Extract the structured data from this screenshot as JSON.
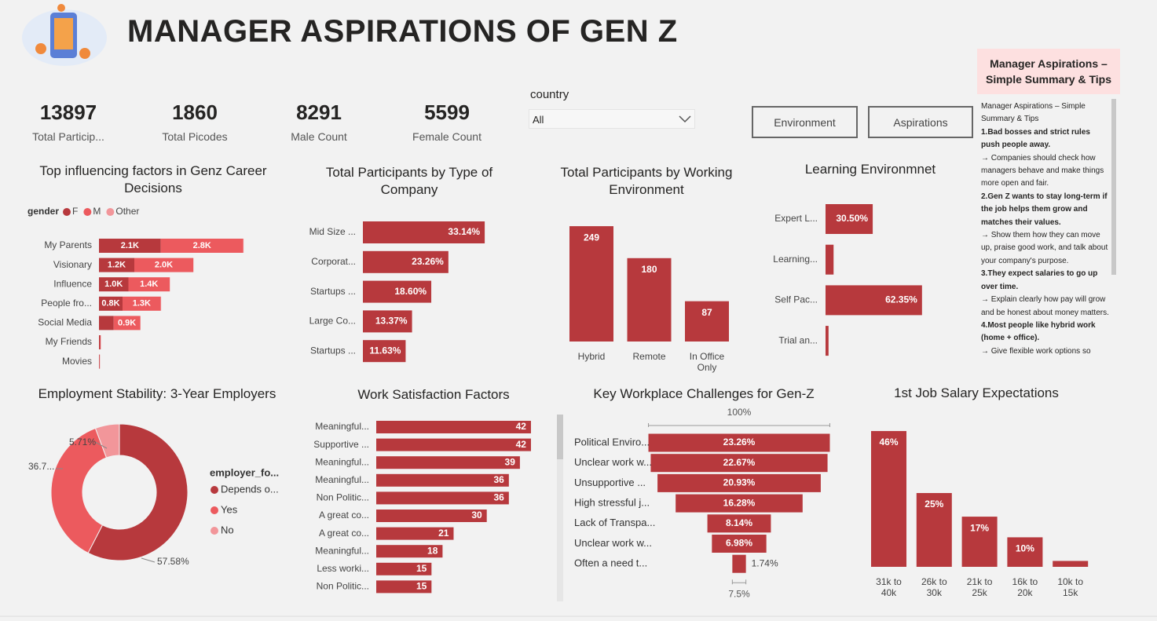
{
  "header": {
    "title": "MANAGER ASPIRATIONS OF GEN Z"
  },
  "kpis": [
    {
      "value": 13897,
      "label": "Total Particip..."
    },
    {
      "value": 1860,
      "label": "Total Picodes"
    },
    {
      "value": 8291,
      "label": "Male Count"
    },
    {
      "value": 5599,
      "label": "Female Count"
    }
  ],
  "slicer": {
    "label": "country",
    "value": "All"
  },
  "buttons": [
    "Environment",
    "Aspirations"
  ],
  "tips": {
    "title": "Manager Aspirations – Simple Summary & Tips",
    "paragraphs": [
      {
        "text": "Manager Aspirations – Simple Summary & Tips",
        "bold": false
      },
      {
        "text": "1.Bad bosses and strict rules push people away.",
        "bold": true
      },
      {
        "text": "→ Companies should check how managers behave and make things more open and fair.",
        "bold": false
      },
      {
        "text": "2.Gen Z wants to stay long-term if the job helps them grow and matches their values.",
        "bold": true
      },
      {
        "text": "→ Show them how they can move up, praise good work, and talk about your company's purpose.",
        "bold": false
      },
      {
        "text": "3.They expect salaries to go up over time.",
        "bold": true
      },
      {
        "text": "→ Explain clearly how pay will grow and be honest about money matters.",
        "bold": false
      },
      {
        "text": "4.Most people like hybrid work (home + office).",
        "bold": true
      },
      {
        "text": "→ Give flexible work options so",
        "bold": false
      }
    ]
  },
  "chart_data": [
    {
      "type": "stacked_hbar",
      "title": "Top influencing factors in Genz Career Decisions",
      "legend_title": "gender",
      "categories": [
        "My Parents",
        "Visionary",
        "Influence",
        "People fro...",
        "Social Media",
        "My Friends",
        "Movies"
      ],
      "series": [
        {
          "name": "F",
          "color": "#b7393d",
          "values": [
            2100,
            1200,
            1000,
            800,
            500,
            40,
            20
          ],
          "value_labels": [
            "2.1K",
            "1.2K",
            "1.0K",
            "0.8K",
            null,
            null,
            null
          ]
        },
        {
          "name": "M",
          "color": "#ec5a5e",
          "values": [
            2800,
            2000,
            1400,
            1300,
            900,
            20,
            10
          ],
          "value_labels": [
            "2.8K",
            "2.0K",
            "1.4K",
            "1.3K",
            "0.9K",
            null,
            null
          ]
        },
        {
          "name": "Other",
          "color": "#f2969a",
          "values": [
            10,
            10,
            10,
            10,
            10,
            5,
            5
          ]
        }
      ]
    },
    {
      "type": "hbar",
      "title": "Total Participants by Type of Company",
      "color": "#b7393d",
      "categories": [
        "Mid Size ...",
        "Corporat...",
        "Startups ...",
        "Large Co...",
        "Startups ..."
      ],
      "values": [
        33.14,
        23.26,
        18.6,
        13.37,
        11.63
      ],
      "value_labels": [
        "33.14%",
        "23.26%",
        "18.60%",
        "13.37%",
        "11.63%"
      ]
    },
    {
      "type": "column",
      "title": "Total Participants by Working Environment",
      "color": "#b7393d",
      "categories": [
        "Hybrid",
        "Remote",
        "In Office Only"
      ],
      "values": [
        249,
        180,
        87
      ]
    },
    {
      "type": "hbar",
      "title": "Learning Environmnet",
      "color": "#b7393d",
      "categories": [
        "Expert L...",
        "Learning...",
        "Self Pac...",
        "Trial an..."
      ],
      "values": [
        30.5,
        5.2,
        62.35,
        1.95
      ],
      "value_labels": [
        "30.50%",
        null,
        "62.35%",
        null
      ]
    },
    {
      "type": "donut",
      "title": "Employment Stability: 3-Year Employers",
      "legend_title": "employer_fo...",
      "categories": [
        "Depends o...",
        "Yes",
        "No"
      ],
      "values": [
        57.58,
        36.71,
        5.71
      ],
      "value_labels": [
        "57.58%",
        "36.7...",
        "5.71%"
      ],
      "colors": [
        "#b7393d",
        "#ec5a5e",
        "#f2969a"
      ]
    },
    {
      "type": "hbar",
      "title": "Work Satisfaction Factors",
      "color": "#b7393d",
      "categories": [
        "Meaningful...",
        "Supportive ...",
        "Meaningful...",
        "Meaningful...",
        "Non Politic...",
        "A great co...",
        "A great co...",
        "Meaningful...",
        "Less worki...",
        "Non Politic..."
      ],
      "values": [
        42,
        42,
        39,
        36,
        36,
        30,
        21,
        18,
        15,
        15
      ]
    },
    {
      "type": "funnel",
      "title": "Key Workplace Challenges for Gen-Z",
      "color": "#b7393d",
      "categories": [
        "Political Enviro...",
        "Unclear work w...",
        "Unsupportive ...",
        "High stressful j...",
        "Lack of Transpa...",
        "Unclear work w...",
        "Often a need t..."
      ],
      "values": [
        23.26,
        22.67,
        20.93,
        16.28,
        8.14,
        6.98,
        1.74
      ],
      "value_labels": [
        "23.26%",
        "22.67%",
        "20.93%",
        "16.28%",
        "8.14%",
        "6.98%",
        "1.74%"
      ],
      "top_label": "100%",
      "bottom_label": "7.5%"
    },
    {
      "type": "column",
      "title": "1st Job Salary Expectations",
      "color": "#b7393d",
      "categories": [
        "31k to 40k",
        "26k to 30k",
        "21k to 25k",
        "16k to 20k",
        "10k to 15k"
      ],
      "values": [
        46,
        25,
        17,
        10,
        2
      ],
      "value_labels": [
        "46%",
        "25%",
        "17%",
        "10%",
        null
      ]
    }
  ]
}
